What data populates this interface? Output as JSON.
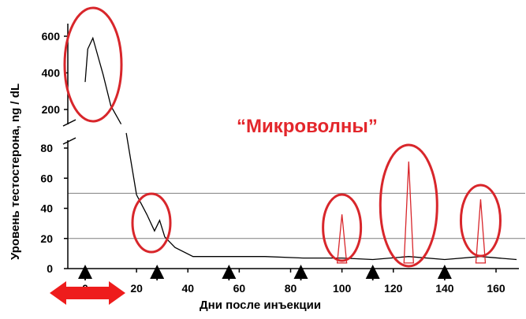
{
  "chart_data": {
    "type": "line",
    "title": "",
    "xlabel": "Дни после инъекции",
    "ylabel": "Уровень тестостерона,  ng / dL",
    "annotation": "“Микроволны”",
    "annotation_color": "#e3262b",
    "highlight_color": "#d8262b",
    "xlim": [
      -10,
      170
    ],
    "x_ticks": [
      0,
      20,
      40,
      60,
      80,
      100,
      120,
      140,
      160
    ],
    "y_axis_lower": {
      "ylim": [
        0,
        90
      ],
      "ticks": [
        0,
        20,
        40,
        60,
        80
      ]
    },
    "y_axis_upper": {
      "ylim": [
        100,
        620
      ],
      "ticks": [
        200,
        400,
        600
      ]
    },
    "reference_lines": [
      20,
      50
    ],
    "injection_days": [
      0,
      28,
      56,
      84,
      112,
      140
    ],
    "series": [
      {
        "values": [
          {
            "x": 0,
            "y": 350
          },
          {
            "x": 1,
            "y": 530
          },
          {
            "x": 3,
            "y": 590
          },
          {
            "x": 7,
            "y": 390
          },
          {
            "x": 10,
            "y": 220
          },
          {
            "x": 14,
            "y": 120
          }
        ]
      },
      {
        "values": [
          {
            "x": 16,
            "y": 90
          },
          {
            "x": 20,
            "y": 49
          },
          {
            "x": 24,
            "y": 36
          },
          {
            "x": 27,
            "y": 25
          },
          {
            "x": 29,
            "y": 32
          },
          {
            "x": 31,
            "y": 21
          },
          {
            "x": 35,
            "y": 14
          },
          {
            "x": 42,
            "y": 8
          },
          {
            "x": 70,
            "y": 8
          },
          {
            "x": 85,
            "y": 7
          },
          {
            "x": 100,
            "y": 7
          },
          {
            "x": 112,
            "y": 6
          },
          {
            "x": 126,
            "y": 8
          },
          {
            "x": 140,
            "y": 6
          },
          {
            "x": 154,
            "y": 8
          },
          {
            "x": 168,
            "y": 6
          }
        ]
      }
    ],
    "microwave_spikes": [
      {
        "x": 100,
        "peak": 36,
        "base": 10
      },
      {
        "x": 126,
        "peak": 71,
        "base": 10
      },
      {
        "x": 154,
        "peak": 46,
        "base": 10
      }
    ],
    "highlighted_regions": [
      "initial surge",
      "day 28 spike",
      "microwave spike day 100",
      "microwave spike day 126",
      "microwave spike day 154"
    ]
  }
}
